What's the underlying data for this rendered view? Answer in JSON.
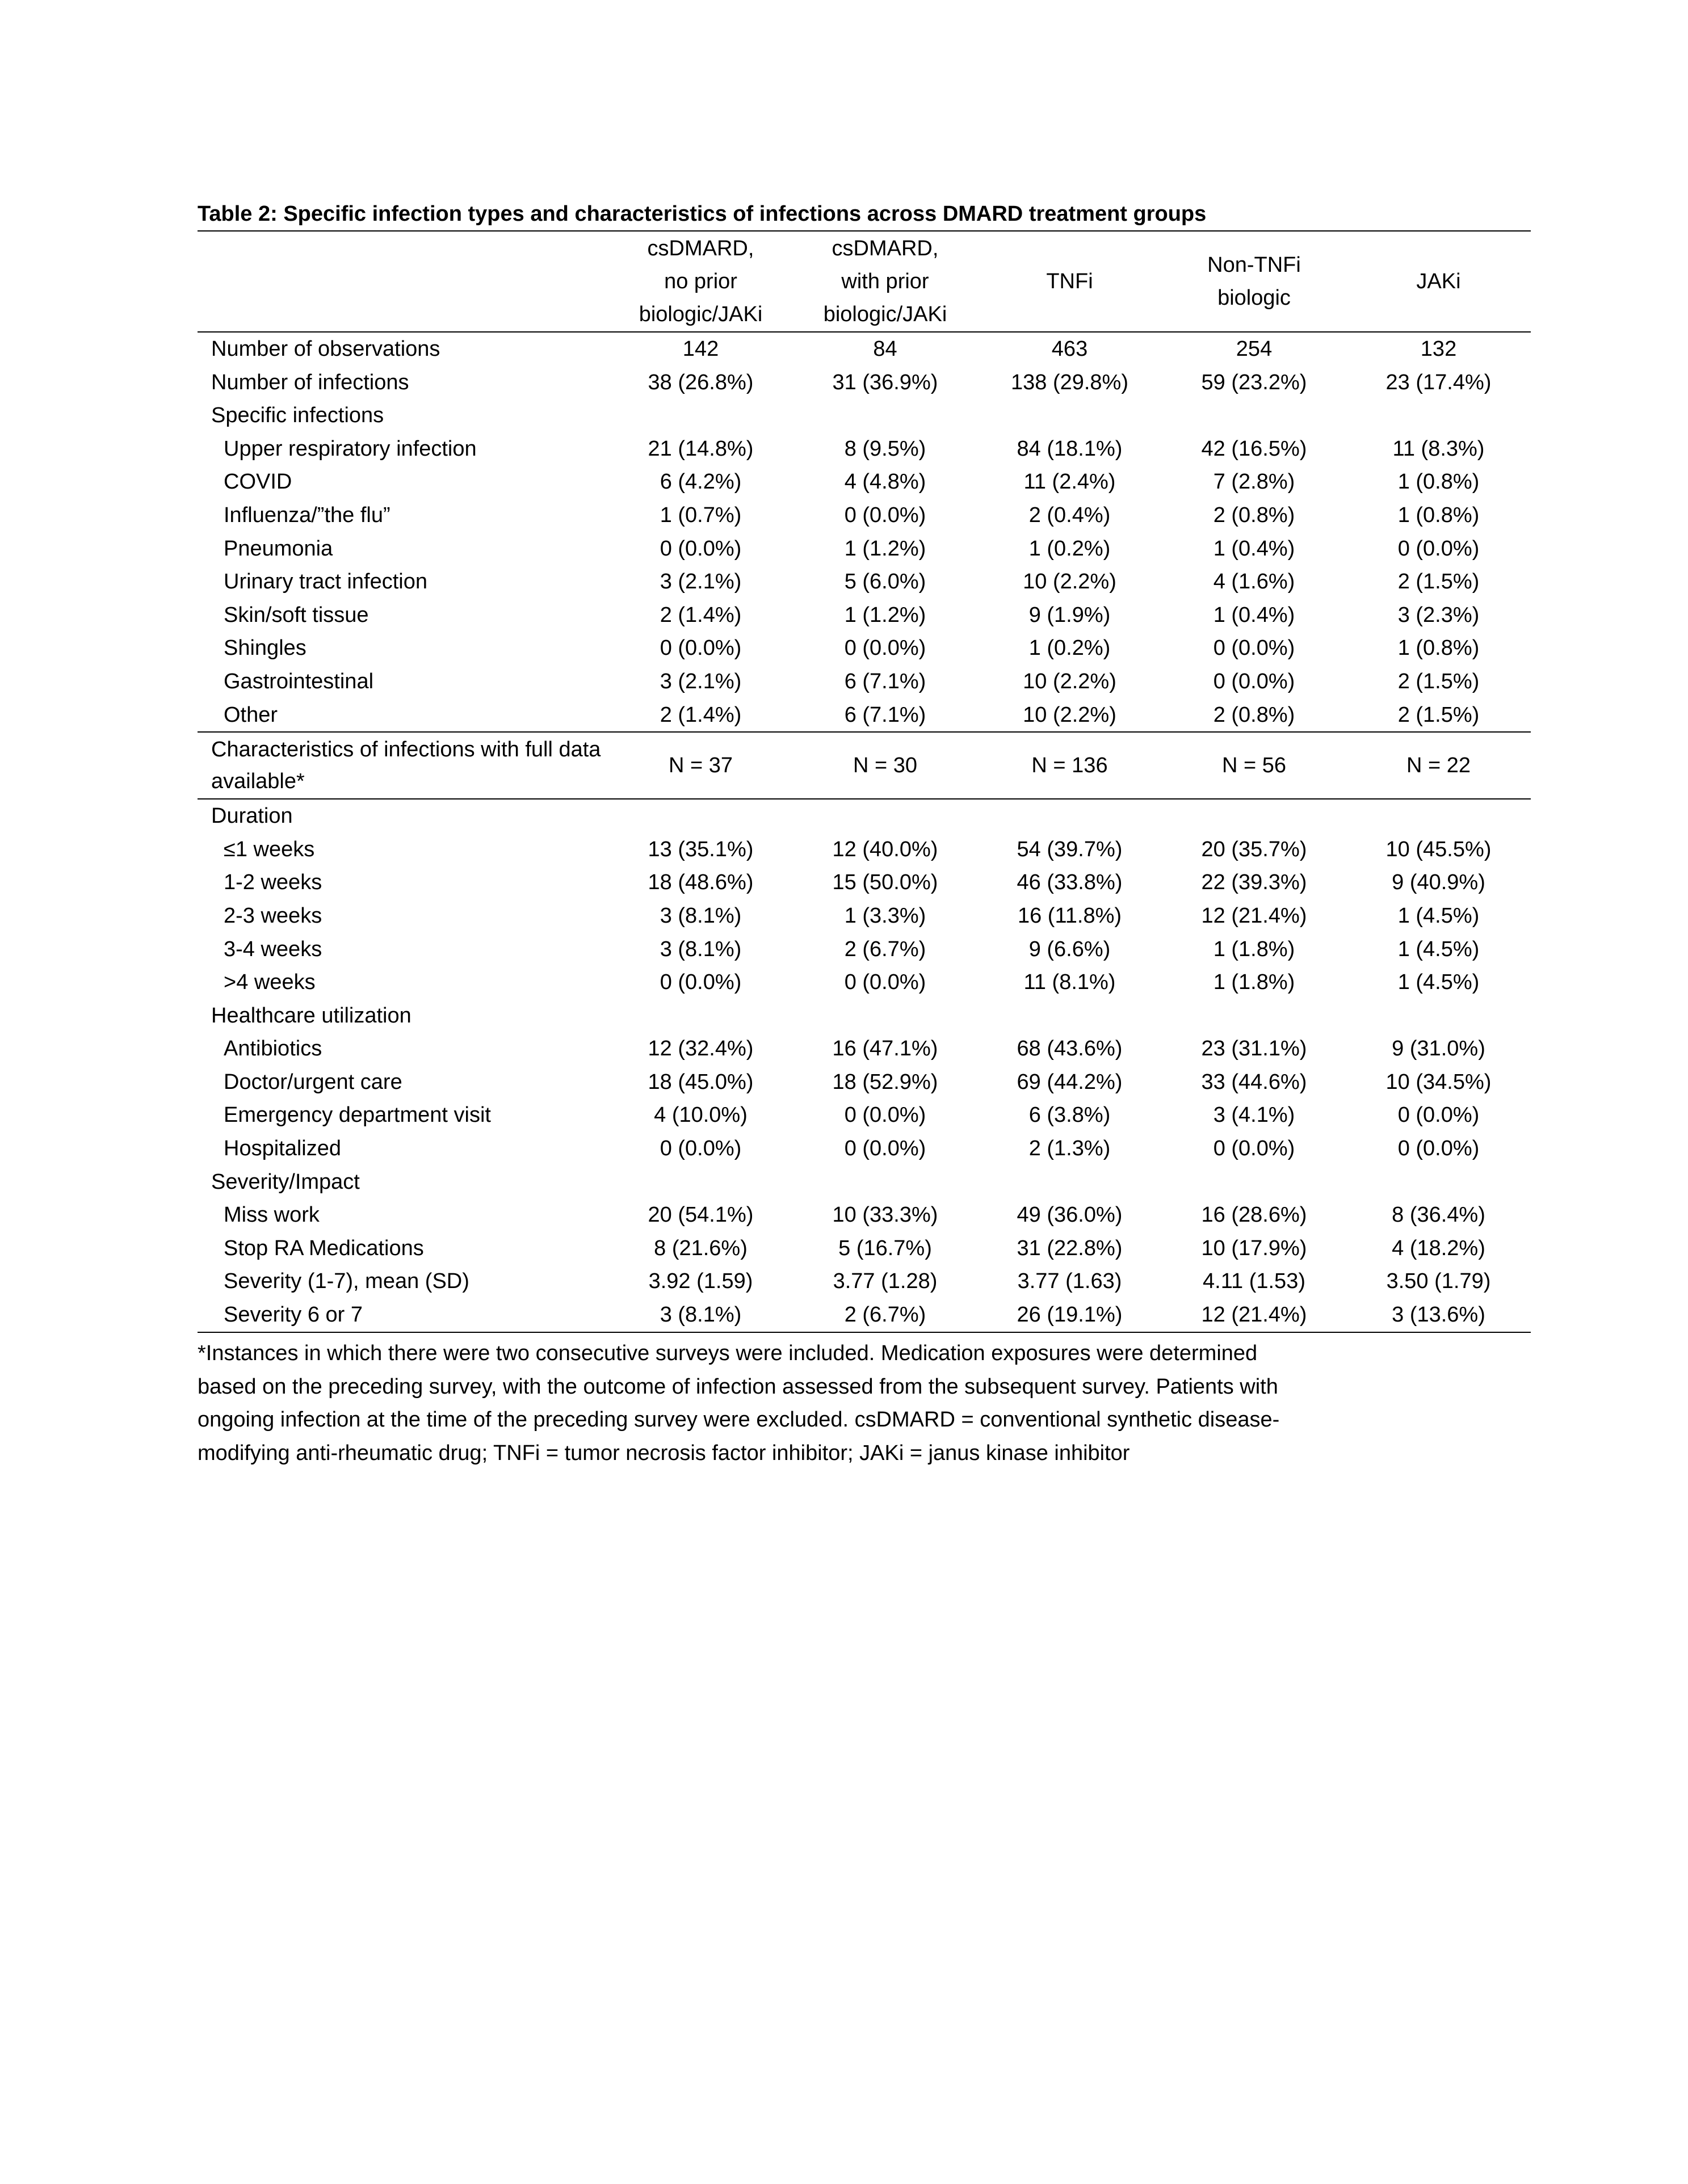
{
  "title": "Table 2: Specific infection types and characteristics of infections across DMARD treatment groups",
  "table": {
    "columns": [
      [
        "csDMARD,",
        "no prior",
        "biologic/JAKi"
      ],
      [
        "csDMARD,",
        "with prior",
        "biologic/JAKi"
      ],
      [
        "TNFi"
      ],
      [
        "Non-TNFi",
        "biologic"
      ],
      [
        "JAKi"
      ]
    ],
    "blocks": [
      [
        {
          "label": "Number of observations",
          "values": [
            "142",
            "84",
            "463",
            "254",
            "132"
          ]
        },
        {
          "label": "Number of infections",
          "values": [
            "38 (26.8%)",
            "31 (36.9%)",
            "138 (29.8%)",
            "59 (23.2%)",
            "23 (17.4%)"
          ]
        },
        {
          "heading": "Specific infections",
          "rows": [
            {
              "label": "Upper respiratory infection",
              "values": [
                "21 (14.8%)",
                "8 (9.5%)",
                "84 (18.1%)",
                "42 (16.5%)",
                "11 (8.3%)"
              ]
            },
            {
              "label": "COVID",
              "values": [
                "6 (4.2%)",
                "4 (4.8%)",
                "11 (2.4%)",
                "7 (2.8%)",
                "1 (0.8%)"
              ]
            },
            {
              "label": "Influenza/”the flu”",
              "values": [
                "1 (0.7%)",
                "0 (0.0%)",
                "2 (0.4%)",
                "2 (0.8%)",
                "1 (0.8%)"
              ]
            },
            {
              "label": "Pneumonia",
              "values": [
                "0 (0.0%)",
                "1 (1.2%)",
                "1 (0.2%)",
                "1 (0.4%)",
                "0 (0.0%)"
              ]
            },
            {
              "label": "Urinary tract infection",
              "values": [
                "3 (2.1%)",
                "5 (6.0%)",
                "10 (2.2%)",
                "4 (1.6%)",
                "2 (1.5%)"
              ]
            },
            {
              "label": "Skin/soft tissue",
              "values": [
                "2 (1.4%)",
                "1 (1.2%)",
                "9 (1.9%)",
                "1 (0.4%)",
                "3 (2.3%)"
              ]
            },
            {
              "label": "Shingles",
              "values": [
                "0 (0.0%)",
                "0 (0.0%)",
                "1 (0.2%)",
                "0 (0.0%)",
                "1 (0.8%)"
              ]
            },
            {
              "label": "Gastrointestinal",
              "values": [
                "3 (2.1%)",
                "6 (7.1%)",
                "10 (2.2%)",
                "0 (0.0%)",
                "2 (1.5%)"
              ]
            },
            {
              "label": "Other",
              "values": [
                "2 (1.4%)",
                "6 (7.1%)",
                "10 (2.2%)",
                "2 (0.8%)",
                "2 (1.5%)"
              ]
            }
          ]
        }
      ],
      [
        {
          "label": "Characteristics of infections with full data available*",
          "values": [
            "N = 37",
            "N = 30",
            "N = 136",
            "N = 56",
            "N = 22"
          ]
        }
      ],
      [
        {
          "heading": "Duration",
          "rows": [
            {
              "label": "≤1 weeks",
              "values": [
                "13 (35.1%)",
                "12 (40.0%)",
                "54 (39.7%)",
                "20 (35.7%)",
                "10 (45.5%)"
              ]
            },
            {
              "label": "1-2 weeks",
              "values": [
                "18 (48.6%)",
                "15 (50.0%)",
                "46 (33.8%)",
                "22 (39.3%)",
                "9 (40.9%)"
              ]
            },
            {
              "label": "2-3 weeks",
              "values": [
                "3 (8.1%)",
                "1 (3.3%)",
                "16 (11.8%)",
                "12 (21.4%)",
                "1 (4.5%)"
              ]
            },
            {
              "label": "3-4 weeks",
              "values": [
                "3 (8.1%)",
                "2 (6.7%)",
                "9 (6.6%)",
                "1 (1.8%)",
                "1 (4.5%)"
              ]
            },
            {
              "label": ">4 weeks",
              "values": [
                "0 (0.0%)",
                "0 (0.0%)",
                "11 (8.1%)",
                "1 (1.8%)",
                "1 (4.5%)"
              ]
            }
          ]
        },
        {
          "heading": "Healthcare utilization",
          "rows": [
            {
              "label": "Antibiotics",
              "values": [
                "12 (32.4%)",
                "16 (47.1%)",
                "68 (43.6%)",
                "23 (31.1%)",
                "9 (31.0%)"
              ]
            },
            {
              "label": "Doctor/urgent care",
              "values": [
                "18 (45.0%)",
                "18 (52.9%)",
                "69 (44.2%)",
                "33 (44.6%)",
                "10 (34.5%)"
              ]
            },
            {
              "label": "Emergency department visit",
              "values": [
                "4 (10.0%)",
                "0 (0.0%)",
                "6 (3.8%)",
                "3 (4.1%)",
                "0 (0.0%)"
              ]
            },
            {
              "label": "Hospitalized",
              "values": [
                "0 (0.0%)",
                "0 (0.0%)",
                "2 (1.3%)",
                "0 (0.0%)",
                "0 (0.0%)"
              ]
            }
          ]
        },
        {
          "heading": "Severity/Impact",
          "rows": [
            {
              "label": "Miss work",
              "values": [
                "20 (54.1%)",
                "10 (33.3%)",
                "49 (36.0%)",
                "16 (28.6%)",
                "8 (36.4%)"
              ]
            },
            {
              "label": "Stop RA Medications",
              "values": [
                "8 (21.6%)",
                "5 (16.7%)",
                "31 (22.8%)",
                "10 (17.9%)",
                "4 (18.2%)"
              ]
            },
            {
              "label": "Severity (1-7), mean (SD)",
              "values": [
                "3.92 (1.59)",
                "3.77 (1.28)",
                "3.77 (1.63)",
                "4.11 (1.53)",
                "3.50 (1.79)"
              ]
            },
            {
              "label": "Severity 6 or 7",
              "values": [
                "3 (8.1%)",
                "2 (6.7%)",
                "26 (19.1%)",
                "12 (21.4%)",
                "3 (13.6%)"
              ]
            }
          ]
        }
      ]
    ]
  },
  "footnote": [
    "*Instances in which there were two consecutive surveys were included. Medication exposures were determined",
    "based on the preceding survey, with the outcome of infection assessed from the subsequent survey. Patients with",
    "ongoing infection at the time of the preceding survey were excluded. csDMARD = conventional synthetic disease-",
    "modifying anti-rheumatic drug; TNFi = tumor necrosis factor inhibitor; JAKi = janus kinase inhibitor"
  ]
}
